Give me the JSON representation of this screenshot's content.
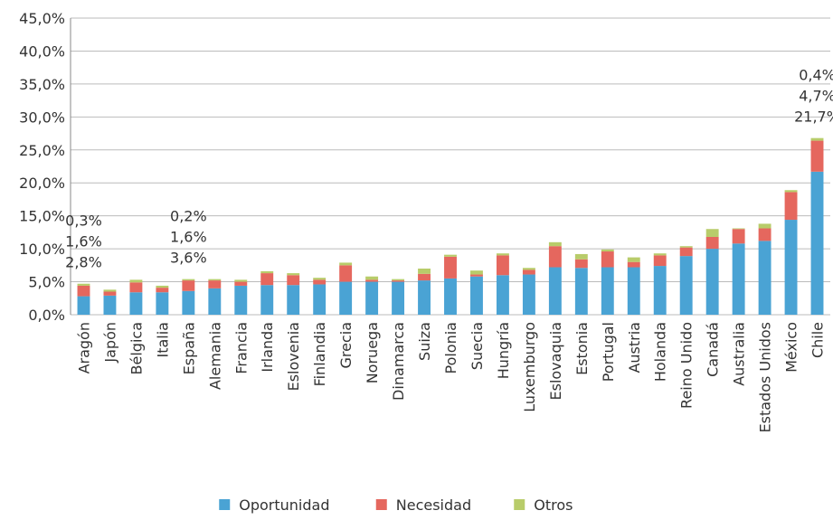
{
  "chart_data": {
    "type": "stacked_bar",
    "categories": [
      "Aragón",
      "Japón",
      "Bélgica",
      "Italia",
      "España",
      "Alemania",
      "Francia",
      "Irlanda",
      "Eslovenia",
      "Finlandia",
      "Grecia",
      "Noruega",
      "Dinamarca",
      "Suiza",
      "Polonia",
      "Suecia",
      "Hungría",
      "Luxemburgo",
      "Eslovaquia",
      "Estonia",
      "Portugal",
      "Austria",
      "Holanda",
      "Reino Unido",
      "Canadá",
      "Australia",
      "Estados Unidos",
      "México",
      "Chile"
    ],
    "series": [
      {
        "name": "Oportunidad",
        "color": "#4aa3d4",
        "values": [
          2.8,
          2.9,
          3.4,
          3.4,
          3.6,
          4.0,
          4.4,
          4.5,
          4.5,
          4.6,
          5.0,
          5.0,
          5.0,
          5.2,
          5.5,
          5.8,
          6.0,
          6.1,
          7.2,
          7.1,
          7.2,
          7.2,
          7.4,
          8.9,
          10.0,
          10.8,
          11.2,
          14.4,
          21.7
        ],
        "value_labels": [
          "2,8%",
          null,
          null,
          null,
          "3,6%",
          null,
          null,
          null,
          null,
          null,
          null,
          null,
          null,
          null,
          null,
          null,
          null,
          null,
          null,
          null,
          null,
          null,
          null,
          null,
          null,
          null,
          null,
          null,
          "21,7%"
        ]
      },
      {
        "name": "Necesidad",
        "color": "#e5675e",
        "values": [
          1.6,
          0.6,
          1.5,
          0.7,
          1.6,
          1.2,
          0.6,
          1.8,
          1.5,
          0.7,
          2.5,
          0.3,
          0.2,
          1.0,
          3.3,
          0.3,
          3.0,
          0.7,
          3.2,
          1.3,
          2.4,
          0.8,
          1.6,
          1.3,
          1.8,
          2.2,
          1.9,
          4.2,
          4.7
        ],
        "value_labels": [
          "1,6%",
          null,
          null,
          null,
          "1,6%",
          null,
          null,
          null,
          null,
          null,
          null,
          null,
          null,
          null,
          null,
          null,
          null,
          null,
          null,
          null,
          null,
          null,
          null,
          null,
          null,
          null,
          null,
          null,
          "4,7%"
        ]
      },
      {
        "name": "Otros",
        "color": "#b8cc6a",
        "values": [
          0.3,
          0.3,
          0.4,
          0.3,
          0.2,
          0.2,
          0.3,
          0.3,
          0.3,
          0.3,
          0.4,
          0.5,
          0.2,
          0.8,
          0.3,
          0.6,
          0.3,
          0.3,
          0.6,
          0.8,
          0.3,
          0.7,
          0.3,
          0.2,
          1.2,
          0.1,
          0.7,
          0.3,
          0.4
        ],
        "value_labels": [
          "0,3%",
          null,
          null,
          null,
          "0,2%",
          null,
          null,
          null,
          null,
          null,
          null,
          null,
          null,
          null,
          null,
          null,
          null,
          null,
          null,
          null,
          null,
          null,
          null,
          null,
          null,
          null,
          null,
          null,
          "0,4%"
        ]
      }
    ],
    "ylim": [
      0,
      45
    ],
    "yticks": [
      {
        "value": 0,
        "label": "0,0%"
      },
      {
        "value": 5,
        "label": "5,0%"
      },
      {
        "value": 10,
        "label": "10,0%"
      },
      {
        "value": 15,
        "label": "15,0%"
      },
      {
        "value": 20,
        "label": "20,0%"
      },
      {
        "value": 25,
        "label": "25,0%"
      },
      {
        "value": 30,
        "label": "30,0%"
      },
      {
        "value": 35,
        "label": "35,0%"
      },
      {
        "value": 40,
        "label": "40,0%"
      },
      {
        "value": 45,
        "label": "45,0%"
      }
    ],
    "grid": true,
    "legend": "bottom"
  }
}
